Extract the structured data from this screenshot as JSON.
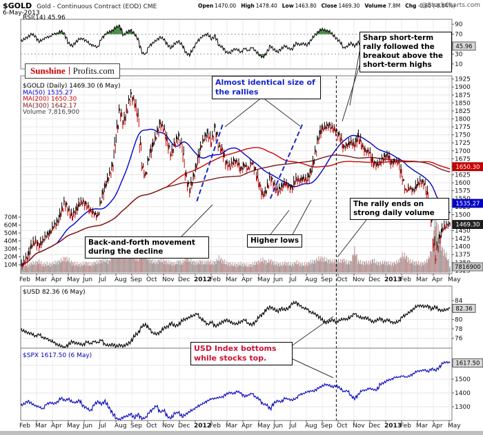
{
  "header": {
    "symbol": "$GOLD",
    "desc": "Gold - Continuous Contract (EOD) CME",
    "date": "6-May-2013",
    "watermark": "@StockCharts.com",
    "quote": [
      {
        "l": "Open",
        "v": "1470.00"
      },
      {
        "l": "High",
        "v": "1478.40"
      },
      {
        "l": "Low",
        "v": "1463.80"
      },
      {
        "l": "Close",
        "v": "1469.30"
      },
      {
        "l": "Volume",
        "v": "7.8M"
      },
      {
        "l": "Chg",
        "v": "-0.60 (-0.04%)"
      }
    ]
  },
  "logo": {
    "first": "Sunshine",
    "second": "Profits.com"
  },
  "labels": {
    "rsi": "RSI(14) 45.96",
    "usd": "$USD 82.36 (6 May)",
    "spx": "$SPX 1617.50 (6 May)"
  },
  "gold_legend": [
    {
      "text": "$GOLD (Daily) 1469.30 (6 May)",
      "color": "#000000"
    },
    {
      "text": "MA(50) 1535.27",
      "color": "#0000cc"
    },
    {
      "text": "MA(200) 1650.30",
      "color": "#cc0000"
    },
    {
      "text": "MA(300) 1642.17",
      "color": "#7a1a1a"
    },
    {
      "text": "Volume 7,816,900",
      "color": "#444444"
    }
  ],
  "value_labels": {
    "rsi": "45.96",
    "ma200": "1650.30",
    "ma50": "1535.27",
    "gold": "1469.30",
    "volume": "7816900",
    "usd": "82.36",
    "spx": "1617.50"
  },
  "annotations": {
    "identical": "Almost identical size of the rallies",
    "sharp": "Sharp short-term rally followed the breakout above the short-term highs",
    "rally_ends": "The rally ends on strong daily volume",
    "back_forth": "Back-and-forth movement during the decline",
    "higher_lows": "Higher lows",
    "usd_note": "USD Index bottoms while stocks top."
  },
  "colors": {
    "annotation_blue": "#1526cc",
    "annotation_red": "#cc1133",
    "spx_line": "#0000bb",
    "usd_line": "#000000",
    "bar_up": "#000000",
    "bar_down": "#cc0000",
    "rsi_fill": "#2d7a2d"
  },
  "x_axis": {
    "range": "Feb 2011 - 6 May 2013",
    "months": [
      "Feb",
      "Mar",
      "Apr",
      "May",
      "Jun",
      "Jul",
      "Aug",
      "Sep",
      "Oct",
      "Nov",
      "Dec",
      "2012",
      "Feb",
      "Mar",
      "Apr",
      "May",
      "Jun",
      "Jul",
      "Aug",
      "Sep",
      "Oct",
      "Nov",
      "Dec",
      "2013",
      "Feb",
      "Mar",
      "Apr",
      "May"
    ]
  },
  "markers": {
    "vline_week": 86,
    "trendlines": [
      {
        "from_week": 48,
        "from_price": 1542,
        "to_week": 55,
        "to_price": 1782
      },
      {
        "from_week": 68,
        "from_price": 1550,
        "to_week": 77,
        "to_price": 1790
      }
    ]
  },
  "chart_data": [
    {
      "id": "rsi",
      "type": "line",
      "title": "RSI(14)",
      "current": 45.96,
      "ylim": [
        0,
        100
      ],
      "yticks": [
        90,
        70,
        50,
        30,
        10
      ],
      "overbought": 70,
      "oversold": 30,
      "frequency": "weekly approximation of daily EOD data",
      "values": [
        55,
        60,
        65,
        70,
        66,
        54,
        60,
        63,
        66,
        70,
        72,
        76,
        70,
        52,
        46,
        54,
        60,
        61,
        55,
        50,
        46,
        44,
        60,
        70,
        74,
        78,
        84,
        87,
        68,
        74,
        79,
        70,
        60,
        32,
        30,
        45,
        53,
        57,
        65,
        59,
        49,
        42,
        51,
        56,
        48,
        34,
        27,
        42,
        53,
        63,
        67,
        71,
        59,
        68,
        47,
        44,
        34,
        32,
        40,
        39,
        34,
        41,
        37,
        43,
        37,
        27,
        24,
        31,
        47,
        39,
        34,
        41,
        46,
        42,
        39,
        53,
        48,
        52,
        47,
        58,
        66,
        75,
        80,
        78,
        76,
        69,
        62,
        54,
        43,
        45,
        53,
        45,
        55,
        43,
        39,
        37,
        29,
        31,
        39,
        49,
        51,
        41,
        44,
        43,
        27,
        21,
        29,
        31,
        41,
        49,
        44,
        34,
        20,
        12,
        33,
        43,
        47,
        45.96
      ]
    },
    {
      "id": "gold",
      "type": "ohlc",
      "title": "$GOLD (Daily)",
      "current": 1469.3,
      "ylim": [
        1315,
        1935
      ],
      "yticks": [
        1925,
        1900,
        1875,
        1850,
        1825,
        1800,
        1775,
        1750,
        1725,
        1700,
        1675,
        1650,
        1625,
        1600,
        1575,
        1550,
        1525,
        1500,
        1475,
        1450,
        1425,
        1400,
        1375,
        1350,
        1325
      ],
      "ma": [
        {
          "period": 50,
          "last": 1535.27,
          "color": "#0000cc"
        },
        {
          "period": 200,
          "last": 1650.3,
          "color": "#cc0000"
        },
        {
          "period": 300,
          "last": 1642.17,
          "color": "#7a1a1a"
        }
      ],
      "frequency": "weekly approximation of daily EOD data",
      "values": [
        1338,
        1352,
        1370,
        1402,
        1418,
        1400,
        1420,
        1432,
        1445,
        1462,
        1478,
        1505,
        1540,
        1515,
        1494,
        1512,
        1533,
        1541,
        1528,
        1514,
        1502,
        1496,
        1546,
        1592,
        1615,
        1652,
        1742,
        1828,
        1788,
        1826,
        1878,
        1852,
        1808,
        1655,
        1622,
        1678,
        1722,
        1744,
        1788,
        1768,
        1726,
        1688,
        1721,
        1746,
        1712,
        1626,
        1572,
        1616,
        1654,
        1712,
        1736,
        1758,
        1724,
        1774,
        1714,
        1700,
        1662,
        1650,
        1668,
        1664,
        1642,
        1654,
        1644,
        1662,
        1640,
        1592,
        1562,
        1574,
        1618,
        1596,
        1572,
        1586,
        1598,
        1590,
        1582,
        1614,
        1604,
        1616,
        1606,
        1634,
        1672,
        1736,
        1768,
        1774,
        1780,
        1770,
        1762,
        1744,
        1712,
        1716,
        1730,
        1714,
        1750,
        1714,
        1700,
        1696,
        1662,
        1656,
        1662,
        1680,
        1686,
        1662,
        1666,
        1664,
        1612,
        1576,
        1582,
        1576,
        1592,
        1606,
        1596,
        1556,
        1482,
        1362,
        1422,
        1454,
        1468,
        1469.3
      ]
    },
    {
      "id": "volume",
      "type": "bar",
      "title": "Volume",
      "current": 7816900,
      "yticks": [
        70,
        60,
        50,
        40,
        30,
        20,
        10
      ],
      "unit": "millions of contracts/shares",
      "values_millions": [
        10,
        11,
        9,
        12,
        12,
        14,
        10,
        11,
        10,
        12,
        13,
        15,
        18,
        16,
        12,
        11,
        10,
        11,
        12,
        10,
        12,
        13,
        15,
        16,
        14,
        22,
        28,
        32,
        26,
        20,
        24,
        20,
        18,
        34,
        22,
        16,
        14,
        13,
        16,
        14,
        13,
        12,
        11,
        14,
        12,
        18,
        16,
        13,
        12,
        14,
        12,
        14,
        12,
        13,
        18,
        15,
        12,
        11,
        10,
        10,
        11,
        10,
        9,
        10,
        12,
        14,
        16,
        13,
        15,
        12,
        11,
        10,
        12,
        11,
        10,
        13,
        11,
        10,
        11,
        13,
        14,
        17,
        18,
        16,
        15,
        14,
        15,
        14,
        16,
        12,
        14,
        28,
        14,
        12,
        13,
        12,
        16,
        12,
        12,
        13,
        12,
        11,
        12,
        14,
        22,
        20,
        14,
        13,
        12,
        11,
        12,
        16,
        30,
        70,
        45,
        28,
        22,
        7.8
      ]
    },
    {
      "id": "usd",
      "type": "line",
      "title": "$USD",
      "current": 82.36,
      "ylim": [
        73.9,
        87.1
      ],
      "yticks": [
        84,
        82,
        80,
        78,
        76
      ],
      "frequency": "weekly approximation of daily EOD data",
      "values": [
        77.8,
        77.5,
        77.2,
        76.9,
        76.5,
        76.8,
        76.2,
        75.9,
        75.6,
        75.1,
        74.7,
        74.3,
        74.0,
        74.6,
        75.3,
        75.0,
        74.8,
        74.6,
        75.2,
        74.9,
        75.3,
        75.1,
        75.6,
        74.7,
        74.4,
        74.8,
        74.2,
        74.6,
        74.3,
        74.7,
        75.3,
        76.4,
        77.2,
        78.4,
        79.0,
        78.0,
        77.2,
        76.8,
        77.4,
        78.1,
        78.5,
        79.2,
        78.6,
        78.9,
        79.7,
        80.2,
        80.4,
        80.9,
        81.2,
        80.3,
        79.6,
        79.0,
        79.4,
        78.6,
        78.9,
        79.5,
        79.9,
        79.5,
        79.2,
        79.0,
        79.6,
        79.9,
        79.2,
        78.8,
        79.6,
        80.5,
        81.3,
        82.1,
        82.7,
        82.2,
        81.7,
        82.4,
        82.0,
        82.5,
        83.3,
        83.7,
        82.9,
        82.5,
        82.2,
        81.6,
        81.2,
        80.8,
        80.0,
        79.3,
        79.6,
        79.9,
        79.5,
        79.8,
        80.2,
        80.0,
        80.7,
        81.2,
        80.7,
        80.2,
        80.5,
        79.9,
        79.5,
        79.8,
        80.2,
        79.6,
        79.9,
        79.5,
        79.2,
        79.7,
        80.5,
        81.1,
        81.5,
        82.3,
        82.8,
        83.0,
        82.7,
        82.9,
        82.2,
        82.7,
        82.1,
        81.8,
        82.2,
        82.36
      ]
    },
    {
      "id": "spx",
      "type": "line",
      "title": "$SPX",
      "current": 1617.5,
      "ylim": [
        1200,
        1725
      ],
      "yticks": [
        1600,
        1500,
        1400,
        1300
      ],
      "frequency": "weekly approximation of daily EOD data",
      "values": [
        1308,
        1322,
        1342,
        1320,
        1310,
        1298,
        1285,
        1316,
        1332,
        1320,
        1336,
        1362,
        1346,
        1356,
        1334,
        1330,
        1346,
        1308,
        1288,
        1272,
        1312,
        1340,
        1316,
        1344,
        1292,
        1258,
        1215,
        1208,
        1225,
        1232,
        1250,
        1216,
        1248,
        1210,
        1222,
        1256,
        1285,
        1305,
        1262,
        1272,
        1228,
        1216,
        1252,
        1260,
        1225,
        1248,
        1262,
        1282,
        1296,
        1316,
        1326,
        1346,
        1356,
        1362,
        1366,
        1372,
        1392,
        1402,
        1396,
        1410,
        1400,
        1372,
        1386,
        1396,
        1372,
        1352,
        1322,
        1312,
        1285,
        1326,
        1342,
        1336,
        1360,
        1356,
        1346,
        1362,
        1386,
        1396,
        1406,
        1416,
        1412,
        1436,
        1446,
        1462,
        1456,
        1442,
        1456,
        1432,
        1412,
        1416,
        1382,
        1356,
        1392,
        1416,
        1422,
        1432,
        1426,
        1420,
        1462,
        1476,
        1490,
        1500,
        1512,
        1516,
        1522,
        1516,
        1522,
        1542,
        1556,
        1562,
        1566,
        1556,
        1576,
        1562,
        1586,
        1614,
        1626,
        1617.5
      ]
    }
  ]
}
